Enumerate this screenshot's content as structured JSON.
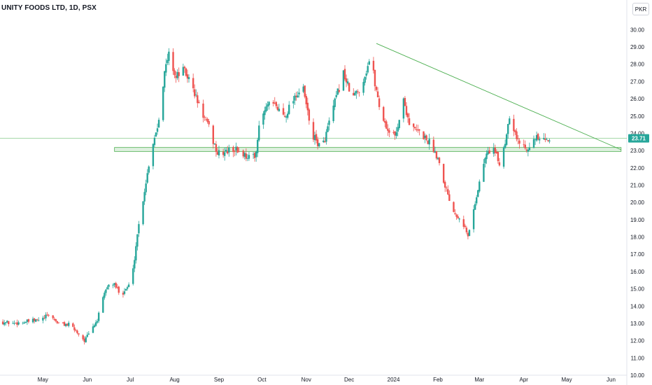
{
  "header": {
    "title": "UNITY FOODS LTD, 1D, PSX",
    "currency": "PKR"
  },
  "colors": {
    "up": "#26a69a",
    "down": "#ef5350",
    "trend": "#4caf50",
    "band_fill": "#c8e6c9",
    "price_tag": "#26a69a"
  },
  "chart_data": {
    "type": "candlestick",
    "title": "UNITY FOODS LTD, 1D, PSX",
    "currency": "PKR",
    "last_price": "23.71",
    "ylim": [
      10,
      30.5
    ],
    "y_ticks": [
      "10.00",
      "11.00",
      "12.00",
      "13.00",
      "14.00",
      "15.00",
      "16.00",
      "17.00",
      "18.00",
      "19.00",
      "20.00",
      "21.00",
      "22.00",
      "23.00",
      "24.00",
      "25.00",
      "26.00",
      "27.00",
      "28.00",
      "29.00",
      "30.00"
    ],
    "x_ticks": [
      "May",
      "Jun",
      "Jul",
      "Aug",
      "Sep",
      "Oct",
      "Nov",
      "Dec",
      "2024",
      "Feb",
      "Mar",
      "Apr",
      "May",
      "Jun"
    ],
    "x_tick_dates": [
      "2023-05-01",
      "2023-06-01",
      "2023-07-01",
      "2023-08-01",
      "2023-09-01",
      "2023-10-01",
      "2023-11-01",
      "2023-12-01",
      "2024-01-01",
      "2024-02-01",
      "2024-03-01",
      "2024-04-01",
      "2024-05-01",
      "2024-06-01"
    ],
    "start_date": "2023-04-01",
    "end_date": "2024-06-12",
    "anchors": [
      [
        "2023-04-01",
        13.1
      ],
      [
        "2023-04-10",
        13.0
      ],
      [
        "2023-04-20",
        13.1
      ],
      [
        "2023-04-30",
        13.2
      ],
      [
        "2023-05-05",
        13.5
      ],
      [
        "2023-05-12",
        13.0
      ],
      [
        "2023-05-20",
        12.9
      ],
      [
        "2023-05-26",
        12.4
      ],
      [
        "2023-05-30",
        12.0
      ],
      [
        "2023-06-03",
        12.5
      ],
      [
        "2023-06-08",
        13.2
      ],
      [
        "2023-06-14",
        15.0
      ],
      [
        "2023-06-18",
        15.4
      ],
      [
        "2023-06-25",
        14.7
      ],
      [
        "2023-07-02",
        15.4
      ],
      [
        "2023-07-06",
        18.2
      ],
      [
        "2023-07-12",
        21.2
      ],
      [
        "2023-07-16",
        23.2
      ],
      [
        "2023-07-20",
        24.4
      ],
      [
        "2023-07-25",
        27.5
      ],
      [
        "2023-07-28",
        28.6
      ],
      [
        "2023-08-02",
        27.2
      ],
      [
        "2023-08-06",
        27.8
      ],
      [
        "2023-08-12",
        27.0
      ],
      [
        "2023-08-18",
        25.6
      ],
      [
        "2023-08-25",
        24.3
      ],
      [
        "2023-08-31",
        22.8
      ],
      [
        "2023-09-05",
        22.9
      ],
      [
        "2023-09-12",
        23.1
      ],
      [
        "2023-09-20",
        22.7
      ],
      [
        "2023-09-26",
        22.6
      ],
      [
        "2023-09-30",
        24.8
      ],
      [
        "2023-10-05",
        25.6
      ],
      [
        "2023-10-10",
        25.6
      ],
      [
        "2023-10-17",
        25.0
      ],
      [
        "2023-10-24",
        26.2
      ],
      [
        "2023-10-30",
        26.5
      ],
      [
        "2023-11-05",
        23.9
      ],
      [
        "2023-11-12",
        23.1
      ],
      [
        "2023-11-20",
        25.5
      ],
      [
        "2023-11-27",
        27.5
      ],
      [
        "2023-12-03",
        26.0
      ],
      [
        "2023-12-10",
        26.8
      ],
      [
        "2023-12-16",
        28.5
      ],
      [
        "2023-12-19",
        26.9
      ],
      [
        "2023-12-23",
        25.2
      ],
      [
        "2023-12-28",
        24.2
      ],
      [
        "2024-01-02",
        23.8
      ],
      [
        "2024-01-08",
        25.9
      ],
      [
        "2024-01-13",
        24.3
      ],
      [
        "2024-01-20",
        24.0
      ],
      [
        "2024-01-27",
        23.4
      ],
      [
        "2024-02-01",
        22.6
      ],
      [
        "2024-02-06",
        21.0
      ],
      [
        "2024-02-12",
        19.5
      ],
      [
        "2024-02-18",
        19.0
      ],
      [
        "2024-02-22",
        18.0
      ],
      [
        "2024-02-28",
        20.4
      ],
      [
        "2024-03-05",
        22.6
      ],
      [
        "2024-03-10",
        23.3
      ],
      [
        "2024-03-15",
        22.2
      ],
      [
        "2024-03-19",
        23.5
      ],
      [
        "2024-03-22",
        25.1
      ],
      [
        "2024-03-28",
        23.5
      ],
      [
        "2024-04-03",
        23.2
      ],
      [
        "2024-04-10",
        23.7
      ],
      [
        "2024-04-16",
        23.5
      ],
      [
        "2024-04-20",
        23.71
      ]
    ],
    "trendline": {
      "from": [
        "2023-12-20",
        29.2
      ],
      "to": [
        "2024-06-08",
        23.05
      ]
    },
    "support_zone": {
      "from_date": "2023-06-20",
      "to_date": "2024-06-08",
      "low": 22.95,
      "high": 23.18
    },
    "price_line": 23.71,
    "grid": false,
    "legend": "none"
  }
}
